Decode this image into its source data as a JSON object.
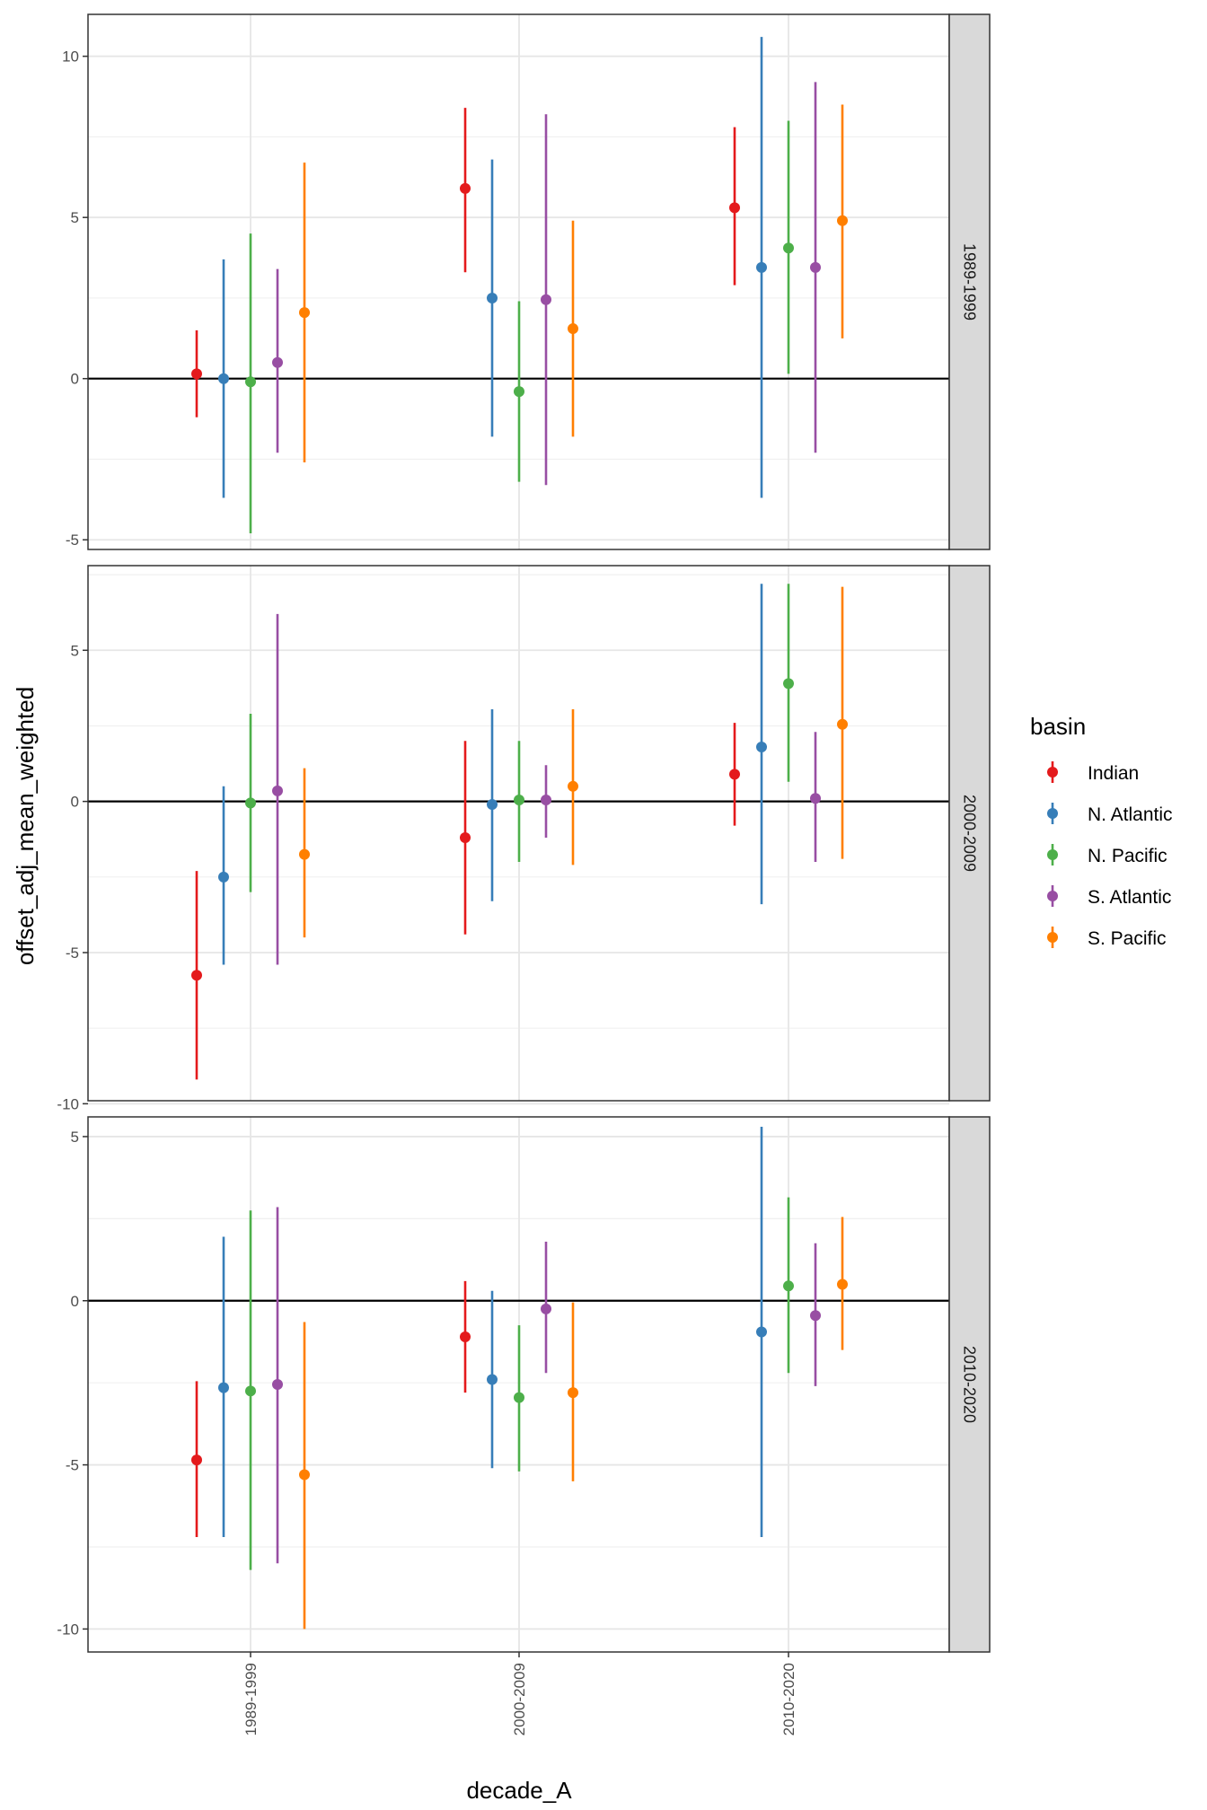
{
  "chart_data": {
    "type": "scatter",
    "subtype": "pointrange-faceted",
    "xlabel": "decade_A",
    "ylabel": "offset_adj_mean_weighted",
    "categories": [
      "1989-1999",
      "2000-2009",
      "2010-2020"
    ],
    "legend": {
      "title": "basin",
      "position": "right",
      "entries": [
        "Indian",
        "N. Atlantic",
        "N. Pacific",
        "S. Atlantic",
        "S. Pacific"
      ]
    },
    "colors": {
      "Indian": "#E41A1C",
      "N. Atlantic": "#377EB8",
      "N. Pacific": "#4DAF4A",
      "S. Atlantic": "#984EA3",
      "S. Pacific": "#FF7F00"
    },
    "grid": true,
    "reference_line": 0,
    "facets": [
      {
        "strip": "1989-1999",
        "ylim": [
          -5.3,
          11.3
        ],
        "yticks": [
          -5,
          0,
          5,
          10
        ],
        "series": [
          {
            "name": "Indian",
            "points": [
              {
                "x": "1989-1999",
                "y": 0.15,
                "lo": -1.2,
                "hi": 1.5
              },
              {
                "x": "2000-2009",
                "y": 5.9,
                "lo": 3.3,
                "hi": 8.4
              },
              {
                "x": "2010-2020",
                "y": 5.3,
                "lo": 2.9,
                "hi": 7.8
              }
            ]
          },
          {
            "name": "N. Atlantic",
            "points": [
              {
                "x": "1989-1999",
                "y": 0.0,
                "lo": -3.7,
                "hi": 3.7
              },
              {
                "x": "2000-2009",
                "y": 2.5,
                "lo": -1.8,
                "hi": 6.8
              },
              {
                "x": "2010-2020",
                "y": 3.45,
                "lo": -3.7,
                "hi": 10.6
              }
            ]
          },
          {
            "name": "N. Pacific",
            "points": [
              {
                "x": "1989-1999",
                "y": -0.1,
                "lo": -4.8,
                "hi": 4.5
              },
              {
                "x": "2000-2009",
                "y": -0.4,
                "lo": -3.2,
                "hi": 2.4
              },
              {
                "x": "2010-2020",
                "y": 4.05,
                "lo": 0.15,
                "hi": 8.0
              }
            ]
          },
          {
            "name": "S. Atlantic",
            "points": [
              {
                "x": "1989-1999",
                "y": 0.5,
                "lo": -2.3,
                "hi": 3.4
              },
              {
                "x": "2000-2009",
                "y": 2.45,
                "lo": -3.3,
                "hi": 8.2
              },
              {
                "x": "2010-2020",
                "y": 3.45,
                "lo": -2.3,
                "hi": 9.2
              }
            ]
          },
          {
            "name": "S. Pacific",
            "points": [
              {
                "x": "1989-1999",
                "y": 2.05,
                "lo": -2.6,
                "hi": 6.7
              },
              {
                "x": "2000-2009",
                "y": 1.55,
                "lo": -1.8,
                "hi": 4.9
              },
              {
                "x": "2010-2020",
                "y": 4.9,
                "lo": 1.25,
                "hi": 8.5
              }
            ]
          }
        ]
      },
      {
        "strip": "2000-2009",
        "ylim": [
          -9.9,
          7.8
        ],
        "yticks": [
          -10,
          -5,
          0,
          5
        ],
        "series": [
          {
            "name": "Indian",
            "points": [
              {
                "x": "1989-1999",
                "y": -5.75,
                "lo": -9.2,
                "hi": -2.3
              },
              {
                "x": "2000-2009",
                "y": -1.2,
                "lo": -4.4,
                "hi": 2.0
              },
              {
                "x": "2010-2020",
                "y": 0.9,
                "lo": -0.8,
                "hi": 2.6
              }
            ]
          },
          {
            "name": "N. Atlantic",
            "points": [
              {
                "x": "1989-1999",
                "y": -2.5,
                "lo": -5.4,
                "hi": 0.5
              },
              {
                "x": "2000-2009",
                "y": -0.1,
                "lo": -3.3,
                "hi": 3.05
              },
              {
                "x": "2010-2020",
                "y": 1.8,
                "lo": -3.4,
                "hi": 7.2
              }
            ]
          },
          {
            "name": "N. Pacific",
            "points": [
              {
                "x": "1989-1999",
                "y": -0.05,
                "lo": -3.0,
                "hi": 2.9
              },
              {
                "x": "2000-2009",
                "y": 0.05,
                "lo": -2.0,
                "hi": 2.0
              },
              {
                "x": "2010-2020",
                "y": 3.9,
                "lo": 0.65,
                "hi": 7.2
              }
            ]
          },
          {
            "name": "S. Atlantic",
            "points": [
              {
                "x": "1989-1999",
                "y": 0.35,
                "lo": -5.4,
                "hi": 6.2
              },
              {
                "x": "2000-2009",
                "y": 0.05,
                "lo": -1.2,
                "hi": 1.2
              },
              {
                "x": "2010-2020",
                "y": 0.1,
                "lo": -2.0,
                "hi": 2.3
              }
            ]
          },
          {
            "name": "S. Pacific",
            "points": [
              {
                "x": "1989-1999",
                "y": -1.75,
                "lo": -4.5,
                "hi": 1.1
              },
              {
                "x": "2000-2009",
                "y": 0.5,
                "lo": -2.1,
                "hi": 3.05
              },
              {
                "x": "2010-2020",
                "y": 2.55,
                "lo": -1.9,
                "hi": 7.1
              }
            ]
          }
        ]
      },
      {
        "strip": "2010-2020",
        "ylim": [
          -10.7,
          5.6
        ],
        "yticks": [
          -10,
          -5,
          0,
          5
        ],
        "series": [
          {
            "name": "Indian",
            "points": [
              {
                "x": "1989-1999",
                "y": -4.85,
                "lo": -7.2,
                "hi": -2.45
              },
              {
                "x": "2000-2009",
                "y": -1.1,
                "lo": -2.8,
                "hi": 0.6
              }
            ]
          },
          {
            "name": "N. Atlantic",
            "points": [
              {
                "x": "1989-1999",
                "y": -2.65,
                "lo": -7.2,
                "hi": 1.95
              },
              {
                "x": "2000-2009",
                "y": -2.4,
                "lo": -5.1,
                "hi": 0.3
              },
              {
                "x": "2010-2020",
                "y": -0.95,
                "lo": -7.2,
                "hi": 5.3
              }
            ]
          },
          {
            "name": "N. Pacific",
            "points": [
              {
                "x": "1989-1999",
                "y": -2.75,
                "lo": -8.2,
                "hi": 2.75
              },
              {
                "x": "2000-2009",
                "y": -2.95,
                "lo": -5.2,
                "hi": -0.75
              },
              {
                "x": "2010-2020",
                "y": 0.45,
                "lo": -2.2,
                "hi": 3.15
              }
            ]
          },
          {
            "name": "S. Atlantic",
            "points": [
              {
                "x": "1989-1999",
                "y": -2.55,
                "lo": -8.0,
                "hi": 2.85
              },
              {
                "x": "2000-2009",
                "y": -0.25,
                "lo": -2.2,
                "hi": 1.8
              },
              {
                "x": "2010-2020",
                "y": -0.45,
                "lo": -2.6,
                "hi": 1.75
              }
            ]
          },
          {
            "name": "S. Pacific",
            "points": [
              {
                "x": "1989-1999",
                "y": -5.3,
                "lo": -10.0,
                "hi": -0.65
              },
              {
                "x": "2000-2009",
                "y": -2.8,
                "lo": -5.5,
                "hi": -0.05
              },
              {
                "x": "2010-2020",
                "y": 0.5,
                "lo": -1.5,
                "hi": 2.55
              }
            ]
          }
        ]
      }
    ]
  }
}
